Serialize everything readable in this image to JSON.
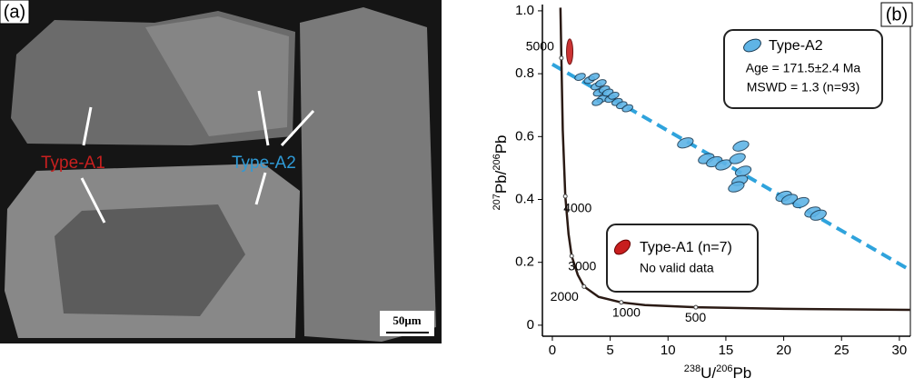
{
  "panel_a": {
    "label": "(a)",
    "type_a1": "Type-A1",
    "type_a2": "Type-A2",
    "scale_bar": "50μm"
  },
  "chart_data": {
    "type": "scatter",
    "panel_label": "(b)",
    "y_label": [
      "207",
      "Pb/",
      "206",
      "Pb"
    ],
    "x_label": [
      "238",
      "U/",
      "206",
      "Pb"
    ],
    "xlim": [
      -0.86,
      30.95
    ],
    "ylim": [
      -0.035,
      1.02
    ],
    "xticks": [
      0,
      5,
      10,
      15,
      20,
      25,
      30
    ],
    "yticks": [
      0,
      0.2,
      0.4,
      0.6,
      0.8,
      {
        "value": 1,
        "label": "1.0"
      }
    ],
    "series": [
      {
        "name": "Type-A2",
        "color": "#5fb4e6",
        "x": [
          2.4,
          3.2,
          3.6,
          3.8,
          4.0,
          4.2,
          4.3,
          4.5,
          3.9,
          4.8,
          5.0,
          5.3,
          5.6,
          6.0,
          6.5,
          11.5,
          13.3,
          14.0,
          14.8,
          16.0,
          16.3,
          16.5,
          16.2,
          15.9,
          20.0,
          20.5,
          21.5,
          22.5,
          23.0
        ],
        "values": [
          0.79,
          0.78,
          0.79,
          0.76,
          0.74,
          0.77,
          0.72,
          0.75,
          0.71,
          0.74,
          0.72,
          0.73,
          0.71,
          0.7,
          0.69,
          0.58,
          0.53,
          0.52,
          0.51,
          0.53,
          0.57,
          0.49,
          0.46,
          0.44,
          0.41,
          0.4,
          0.39,
          0.36,
          0.35
        ]
      },
      {
        "name": "Type-A1 (n=7)",
        "color": "#c81e1e",
        "x": [
          1.5
        ],
        "values": [
          0.87
        ]
      }
    ],
    "notes_a2": [
      "Age = 171.5±2.4 Ma",
      "MSWD = 1.3 (n=93)"
    ],
    "notes_a1": "No valid data",
    "concordia": {
      "x": [
        0.7,
        0.78,
        0.9,
        1.12,
        1.4,
        1.67,
        2.2,
        2.74,
        4,
        5.96,
        8,
        12.4,
        20,
        30.9
      ],
      "values": [
        1.01,
        0.85,
        0.62,
        0.41,
        0.29,
        0.22,
        0.16,
        0.123,
        0.09,
        0.0725,
        0.064,
        0.057,
        0.052,
        0.049
      ]
    },
    "ages": {
      "labels": [
        5000,
        4000,
        3000,
        2000,
        1000,
        500
      ],
      "x": [
        0.78,
        1.12,
        1.67,
        2.74,
        5.96,
        12.4
      ],
      "values": [
        0.85,
        0.41,
        0.22,
        0.123,
        0.0725,
        0.057
      ]
    },
    "discordia": {
      "x": [
        0,
        30.9
      ],
      "values": [
        0.83,
        0.176
      ],
      "color": "#2fa3dc"
    }
  }
}
